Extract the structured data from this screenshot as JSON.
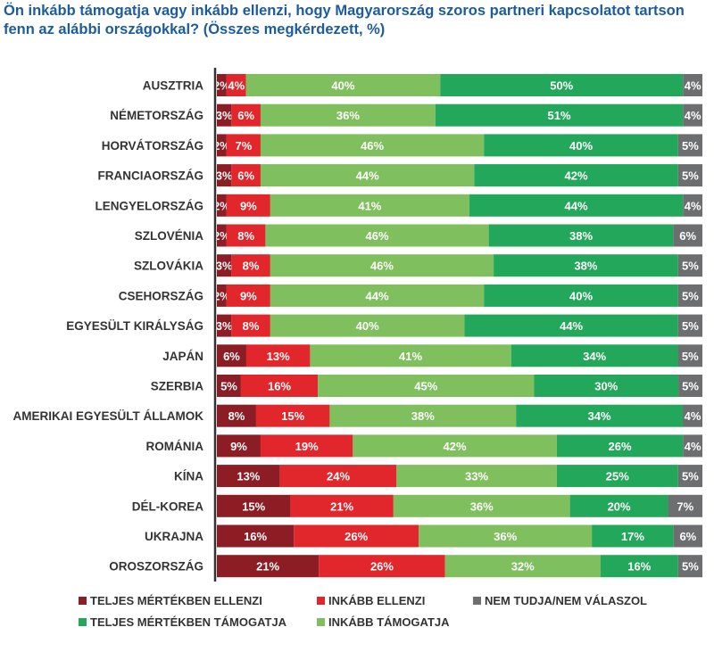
{
  "chart_data": {
    "type": "bar",
    "orientation": "horizontal-stacked-100",
    "title": "Ön inkább támogatja vagy inkább ellenzi, hogy Magyarország szoros partneri kapcsolatot tartson fenn az alábbi országokkal? (Összes megkérdezett, %)",
    "categories": [
      "AUSZTRIA",
      "NÉMETORSZÁG",
      "HORVÁTORSZÁG",
      "FRANCIAORSZÁG",
      "LENGYELORSZÁG",
      "SZLOVÉNIA",
      "SZLOVÁKIA",
      "CSEHORSZÁG",
      "EGYESÜLT KIRÁLYSÁG",
      "JAPÁN",
      "SZERBIA",
      "AMERIKAI EGYESÜLT ÁLLAMOK",
      "ROMÁNIA",
      "KÍNA",
      "DÉL-KOREA",
      "UKRAJNA",
      "OROSZORSZÁG"
    ],
    "series": [
      {
        "name": "TELJES MÉRTÉKBEN ELLENZI",
        "color": "#8c1d24",
        "values": [
          2,
          3,
          2,
          3,
          2,
          2,
          3,
          2,
          3,
          6,
          5,
          8,
          9,
          13,
          15,
          16,
          21
        ]
      },
      {
        "name": "INKÁBB ELLENZI",
        "color": "#e1262c",
        "values": [
          4,
          6,
          7,
          6,
          9,
          8,
          8,
          9,
          8,
          13,
          16,
          15,
          19,
          24,
          21,
          26,
          26
        ]
      },
      {
        "name": "INKÁBB TÁMOGATJA",
        "color": "#7fbf5d",
        "values": [
          40,
          36,
          46,
          44,
          41,
          46,
          46,
          44,
          40,
          41,
          45,
          38,
          42,
          33,
          36,
          36,
          32
        ]
      },
      {
        "name": "TELJES MÉRTÉKBEN TÁMOGATJA",
        "color": "#23a75a",
        "values": [
          50,
          51,
          40,
          42,
          44,
          38,
          38,
          40,
          44,
          34,
          30,
          34,
          26,
          25,
          20,
          17,
          16
        ]
      },
      {
        "name": "NEM TUDJA/NEM VÁLASZOL",
        "color": "#6d6e70",
        "values": [
          4,
          4,
          5,
          5,
          4,
          6,
          5,
          5,
          5,
          5,
          5,
          4,
          4,
          5,
          7,
          6,
          5
        ]
      }
    ],
    "legend_order": [
      0,
      1,
      4,
      3,
      2
    ],
    "unit": "%"
  }
}
